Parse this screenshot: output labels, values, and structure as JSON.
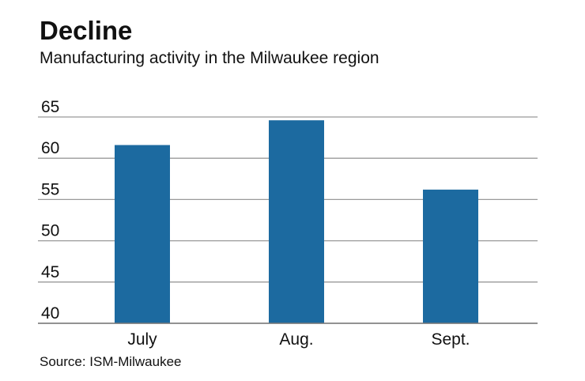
{
  "chart_data": {
    "type": "bar",
    "title": "Decline",
    "subtitle": "Manufacturing activity in the Milwaukee region",
    "categories": [
      "July",
      "Aug.",
      "Sept."
    ],
    "values": [
      61.6,
      64.6,
      56.2
    ],
    "ylim": [
      40,
      65
    ],
    "yticks": [
      40,
      45,
      50,
      55,
      60,
      65
    ],
    "xlabel": "",
    "ylabel": "",
    "grid": true,
    "bar_color": "#1c6aa0",
    "source": "Source: ISM-Milwaukee"
  }
}
